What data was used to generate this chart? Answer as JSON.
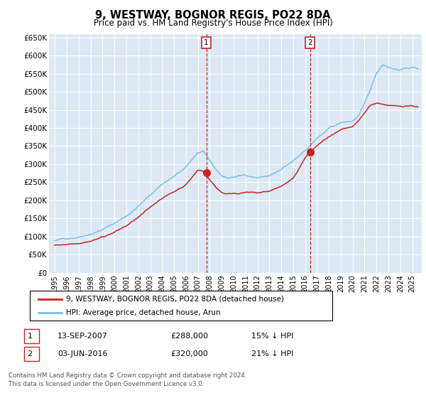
{
  "title": "9, WESTWAY, BOGNOR REGIS, PO22 8DA",
  "subtitle": "Price paid vs. HM Land Registry's House Price Index (HPI)",
  "ylim": [
    0,
    650000
  ],
  "xlim_start": 1994.5,
  "xlim_end": 2025.8,
  "background_color": "#dce9f5",
  "plot_bg": "#dce9f5",
  "hpi_color": "#7bbfea",
  "price_color": "#cc2222",
  "sale1_date": "13-SEP-2007",
  "sale1_price": 288000,
  "sale1_hpi_pct": "15% ↓ HPI",
  "sale2_date": "03-JUN-2016",
  "sale2_price": 320000,
  "sale2_hpi_pct": "21% ↓ HPI",
  "legend_line1": "9, WESTWAY, BOGNOR REGIS, PO22 8DA (detached house)",
  "legend_line2": "HPI: Average price, detached house, Arun",
  "footer": "Contains HM Land Registry data © Crown copyright and database right 2024.\nThis data is licensed under the Open Government Licence v3.0.",
  "sale1_x": 2007.71,
  "sale2_x": 2016.42
}
